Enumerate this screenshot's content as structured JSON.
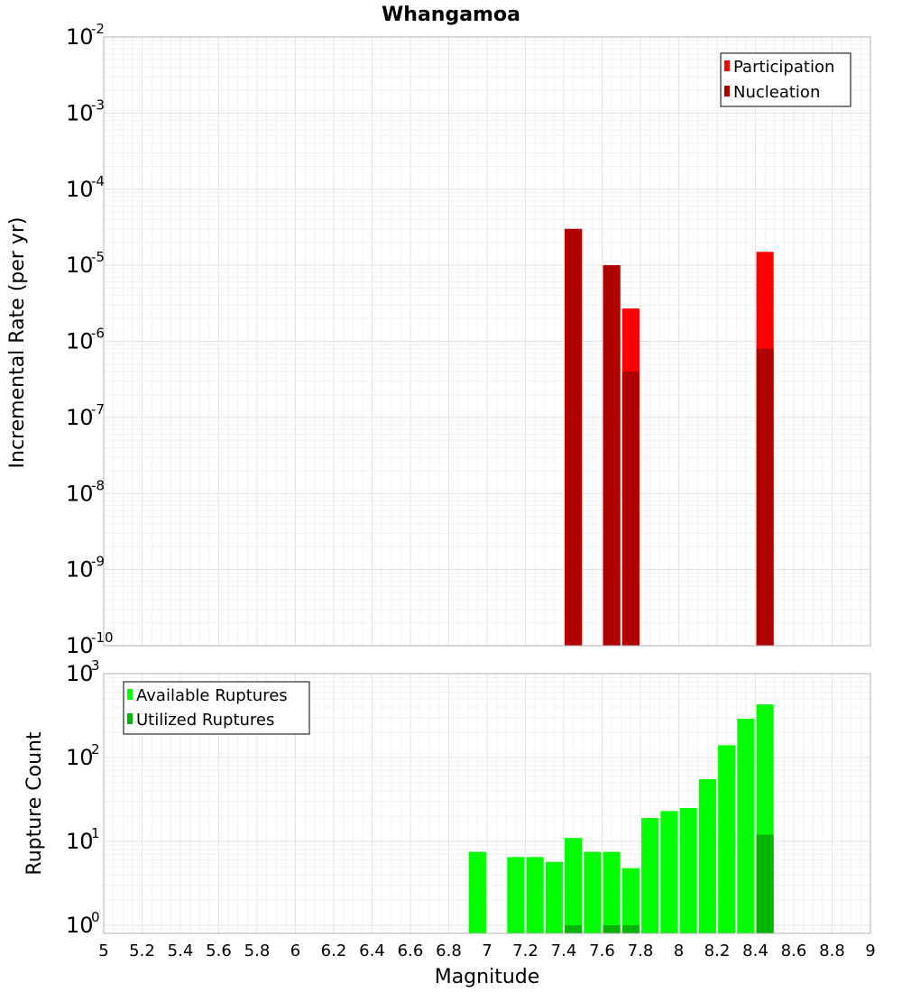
{
  "chart_data": [
    {
      "type": "bar",
      "title": "Whangamoa",
      "xlabel": "",
      "ylabel": "Incremental Rate (per yr)",
      "xlim": [
        5,
        9
      ],
      "ylim": [
        1e-10,
        0.01
      ],
      "y_scale": "log",
      "bar_width": 0.09,
      "legend_placement": "top-right",
      "grid": true,
      "y_tick_exponents": [
        "-10",
        "-9",
        "-8",
        "-7",
        "-6",
        "-5",
        "-4",
        "-3",
        "-2"
      ],
      "series": [
        {
          "name": "Participation",
          "color": "#ff0000",
          "x": [
            7.45,
            7.65,
            7.75,
            8.45
          ],
          "values": [
            3e-05,
            1e-05,
            2.7e-06,
            1.5e-05
          ]
        },
        {
          "name": "Nucleation",
          "color": "#b00000",
          "x": [
            7.45,
            7.65,
            7.75,
            8.45
          ],
          "values": [
            3e-05,
            1e-05,
            4e-07,
            8e-07
          ]
        }
      ]
    },
    {
      "type": "bar",
      "title": "",
      "xlabel": "Magnitude",
      "ylabel": "Rupture Count",
      "xlim": [
        5,
        9
      ],
      "ylim": [
        0.8,
        1000
      ],
      "y_scale": "log",
      "bar_width": 0.09,
      "legend_placement": "top-left",
      "grid": true,
      "x_tick_labels": [
        "5",
        "5.2",
        "5.4",
        "5.6",
        "5.8",
        "6",
        "6.2",
        "6.4",
        "6.6",
        "6.8",
        "7",
        "7.2",
        "7.4",
        "7.6",
        "7.8",
        "8",
        "8.2",
        "8.4",
        "8.6",
        "8.8",
        "9"
      ],
      "y_tick_exponents": [
        "0",
        "1",
        "2",
        "3"
      ],
      "series": [
        {
          "name": "Available Ruptures",
          "color": "#00ff00",
          "x": [
            6.95,
            7.15,
            7.25,
            7.35,
            7.45,
            7.55,
            7.65,
            7.75,
            7.85,
            7.95,
            8.05,
            8.15,
            8.25,
            8.35,
            8.45
          ],
          "values": [
            7.5,
            6.5,
            6.5,
            5.7,
            11,
            7.5,
            7.5,
            4.8,
            19,
            23,
            25,
            55,
            140,
            290,
            430
          ]
        },
        {
          "name": "Utilized Ruptures",
          "color": "#00b400",
          "x": [
            7.45,
            7.65,
            7.75,
            8.45
          ],
          "values": [
            1,
            1,
            1,
            12
          ]
        }
      ]
    }
  ]
}
